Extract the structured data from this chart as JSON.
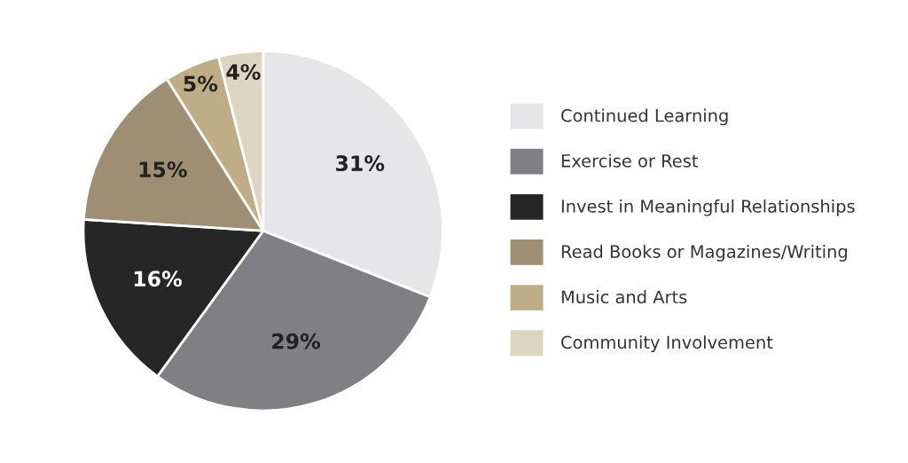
{
  "chart_data": {
    "type": "pie",
    "categories": [
      "Continued Learning",
      "Exercise or Rest",
      "Invest in Meaningful Relationships",
      "Read Books or Magazines/Writing",
      "Music and Arts",
      "Community Involvement"
    ],
    "values": [
      31,
      29,
      16,
      15,
      5,
      4
    ],
    "value_labels": [
      "31%",
      "29%",
      "16%",
      "15%",
      "5%",
      "4%"
    ],
    "colors": [
      "#e6e6e8",
      "#808084",
      "#262626",
      "#9e8f74",
      "#bfae85",
      "#ddd5c1"
    ],
    "legend": "right"
  }
}
